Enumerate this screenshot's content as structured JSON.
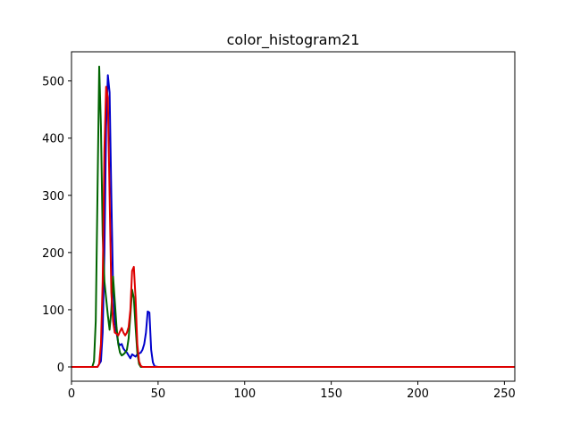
{
  "chart_data": {
    "type": "line",
    "title": "color_histogram21",
    "xlabel": "",
    "ylabel": "",
    "xlim": [
      0,
      256
    ],
    "ylim": [
      -25,
      551
    ],
    "grid": false,
    "xticks": [
      0,
      50,
      100,
      150,
      200,
      250
    ],
    "yticks": [
      0,
      100,
      200,
      300,
      400,
      500
    ],
    "series": [
      {
        "color": "#0000cc",
        "points": [
          [
            0,
            0
          ],
          [
            15,
            0
          ],
          [
            17,
            10
          ],
          [
            18,
            60
          ],
          [
            19,
            200
          ],
          [
            20,
            420
          ],
          [
            21,
            510
          ],
          [
            22,
            480
          ],
          [
            23,
            300
          ],
          [
            24,
            140
          ],
          [
            25,
            80
          ],
          [
            26,
            60
          ],
          [
            27,
            42
          ],
          [
            28,
            38
          ],
          [
            29,
            40
          ],
          [
            30,
            32
          ],
          [
            31,
            28
          ],
          [
            32,
            25
          ],
          [
            33,
            20
          ],
          [
            34,
            15
          ],
          [
            35,
            22
          ],
          [
            36,
            20
          ],
          [
            37,
            18
          ],
          [
            38,
            22
          ],
          [
            40,
            25
          ],
          [
            41,
            30
          ],
          [
            42,
            40
          ],
          [
            43,
            60
          ],
          [
            44,
            97
          ],
          [
            45,
            95
          ],
          [
            46,
            30
          ],
          [
            47,
            8
          ],
          [
            48,
            1
          ],
          [
            50,
            0
          ],
          [
            256,
            0
          ]
        ]
      },
      {
        "color": "#006400",
        "points": [
          [
            0,
            0
          ],
          [
            12,
            0
          ],
          [
            13,
            10
          ],
          [
            14,
            80
          ],
          [
            15,
            300
          ],
          [
            16,
            525
          ],
          [
            17,
            420
          ],
          [
            18,
            230
          ],
          [
            19,
            150
          ],
          [
            20,
            120
          ],
          [
            21,
            90
          ],
          [
            22,
            65
          ],
          [
            23,
            100
          ],
          [
            24,
            158
          ],
          [
            25,
            115
          ],
          [
            26,
            70
          ],
          [
            27,
            40
          ],
          [
            28,
            25
          ],
          [
            29,
            20
          ],
          [
            30,
            22
          ],
          [
            31,
            25
          ],
          [
            32,
            30
          ],
          [
            33,
            50
          ],
          [
            34,
            90
          ],
          [
            35,
            135
          ],
          [
            36,
            120
          ],
          [
            37,
            70
          ],
          [
            38,
            25
          ],
          [
            39,
            5
          ],
          [
            40,
            0
          ],
          [
            256,
            0
          ]
        ]
      },
      {
        "color": "#dd0000",
        "points": [
          [
            0,
            0
          ],
          [
            15,
            0
          ],
          [
            16,
            5
          ],
          [
            17,
            40
          ],
          [
            18,
            150
          ],
          [
            19,
            380
          ],
          [
            20,
            490
          ],
          [
            21,
            470
          ],
          [
            22,
            300
          ],
          [
            23,
            130
          ],
          [
            24,
            80
          ],
          [
            25,
            60
          ],
          [
            26,
            58
          ],
          [
            27,
            55
          ],
          [
            28,
            62
          ],
          [
            29,
            68
          ],
          [
            30,
            60
          ],
          [
            31,
            55
          ],
          [
            32,
            60
          ],
          [
            33,
            70
          ],
          [
            34,
            100
          ],
          [
            35,
            168
          ],
          [
            36,
            175
          ],
          [
            37,
            120
          ],
          [
            38,
            40
          ],
          [
            39,
            10
          ],
          [
            40,
            2
          ],
          [
            41,
            0
          ],
          [
            256,
            0
          ]
        ]
      }
    ]
  }
}
